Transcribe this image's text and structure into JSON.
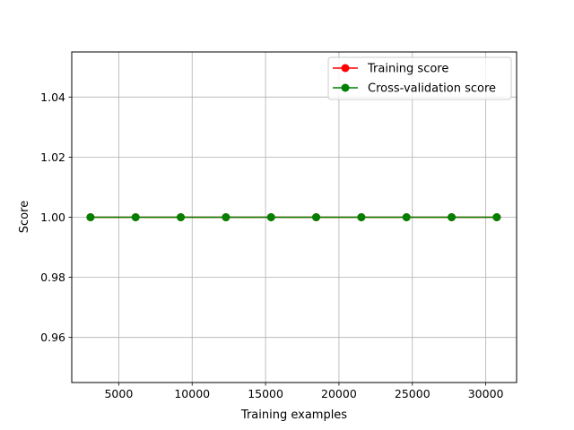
{
  "chart_data": {
    "type": "line",
    "title": "",
    "xlabel": "Training examples",
    "ylabel": "Score",
    "xlim": [
      1800,
      32100
    ],
    "ylim": [
      0.945,
      1.055
    ],
    "xticks": [
      5000,
      10000,
      15000,
      20000,
      25000,
      30000
    ],
    "xtick_labels": [
      "5000",
      "10000",
      "15000",
      "20000",
      "25000",
      "30000"
    ],
    "yticks": [
      0.96,
      0.98,
      1.0,
      1.02,
      1.04
    ],
    "ytick_labels": [
      "0.96",
      "0.98",
      "1.00",
      "1.02",
      "1.04"
    ],
    "grid": true,
    "legend_position": "top-right",
    "x": [
      3075,
      6150,
      9225,
      12300,
      15375,
      18450,
      21525,
      24600,
      27675,
      30750
    ],
    "series": [
      {
        "name": "Training score",
        "color": "#ff0000",
        "marker": "circle",
        "values": [
          1,
          1,
          1,
          1,
          1,
          1,
          1,
          1,
          1,
          1
        ]
      },
      {
        "name": "Cross-validation score",
        "color": "#008000",
        "marker": "circle",
        "values": [
          1,
          1,
          1,
          1,
          1,
          1,
          1,
          1,
          1,
          1
        ]
      }
    ]
  }
}
